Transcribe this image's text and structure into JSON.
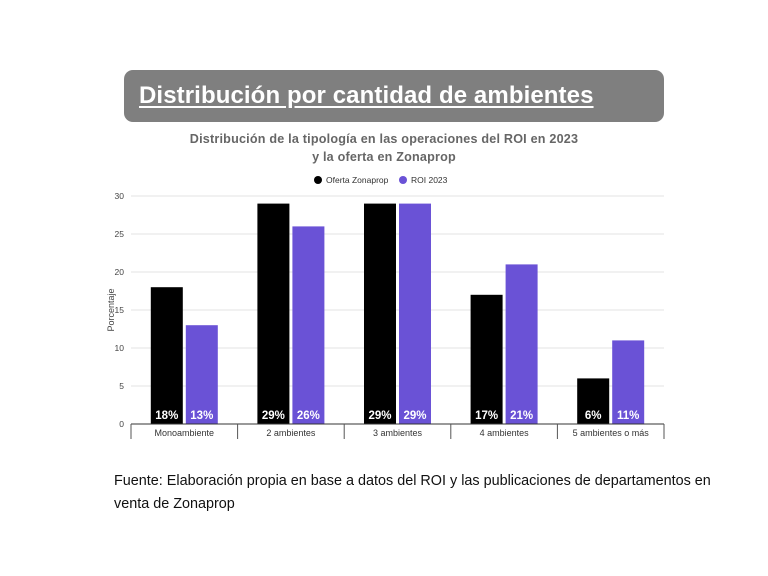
{
  "banner": {
    "title": "Distribución por cantidad de ambientes"
  },
  "chart_data": {
    "type": "bar",
    "title": "Distribución de la tipología en las operaciones del ROI en 2023",
    "subtitle": "y la oferta en Zonaprop",
    "ylabel": "Porcentaje",
    "xlabel": "",
    "ylim": [
      0,
      30
    ],
    "yticks": [
      0,
      5,
      10,
      15,
      20,
      25,
      30
    ],
    "categories": [
      "Monoambiente",
      "2 ambientes",
      "3 ambientes",
      "4 ambientes",
      "5 ambientes o más"
    ],
    "series": [
      {
        "name": "Oferta Zonaprop",
        "color": "#000000",
        "values": [
          18,
          29,
          29,
          17,
          6
        ],
        "labels": [
          "18%",
          "29%",
          "29%",
          "17%",
          "6%"
        ]
      },
      {
        "name": "ROI 2023",
        "color": "#6a52d6",
        "values": [
          13,
          26,
          29,
          21,
          11
        ],
        "labels": [
          "13%",
          "26%",
          "29%",
          "21%",
          "11%"
        ]
      }
    ],
    "grid": true,
    "legend": "top-center"
  },
  "footer": {
    "source_line1": "Fuente: Elaboración propia en base a datos del ROI y las publicaciones de departamentos en",
    "source_line2": "venta de Zonaprop"
  }
}
